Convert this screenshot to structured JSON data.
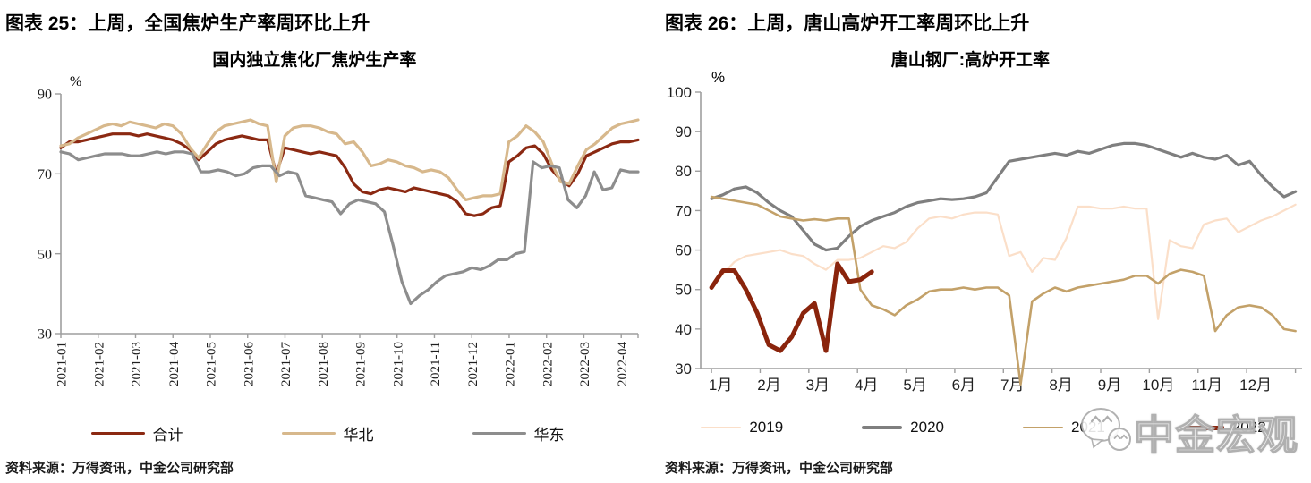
{
  "panels": [
    {
      "header": "图表 25：上周，全国焦炉生产率周环比上升",
      "source": "资料来源：万得资讯，中金公司研究部"
    },
    {
      "header": "图表 26：上周，唐山高炉开工率周环比上升",
      "source": "资料来源：万得资讯，中金公司研究部"
    }
  ],
  "watermark": {
    "text": "中金宏观",
    "icon": "wechat-logo-icon"
  },
  "chart_data": [
    {
      "type": "line",
      "title": "国内独立焦化厂焦炉生产率",
      "ylabel": "%",
      "ylim": [
        30,
        90
      ],
      "yticks": [
        90,
        70,
        50,
        30
      ],
      "grid": false,
      "legend_position": "bottom",
      "x_unit": "weekly",
      "x_tick_labels": [
        "2021-01",
        "2021-02",
        "2021-03",
        "2021-04",
        "2021-05",
        "2021-06",
        "2021-07",
        "2021-08",
        "2021-09",
        "2021-10",
        "2021-11",
        "2021-12",
        "2022-01",
        "2022-02",
        "2022-03",
        "2022-04"
      ],
      "series": [
        {
          "name": "合计",
          "color": "#8B2912",
          "width": 3.2,
          "values": [
            76.5,
            78,
            78,
            78.5,
            79,
            79.5,
            80,
            80,
            80,
            79.5,
            80,
            79.5,
            79,
            78.5,
            77.5,
            76,
            73.5,
            75.5,
            77.5,
            78.5,
            79,
            79.5,
            79,
            78.5,
            78.5,
            70,
            76.5,
            76,
            75.5,
            75,
            75.5,
            75,
            74.5,
            71.5,
            67.5,
            65.5,
            65,
            66,
            66.5,
            66,
            65.5,
            66.5,
            66,
            65.5,
            65,
            64.5,
            63,
            60,
            59.5,
            60,
            61.5,
            62,
            73,
            74.5,
            76.5,
            77,
            75,
            71,
            68.5,
            67,
            70,
            74.5,
            75.5,
            76.5,
            77.5,
            78,
            78,
            78.5
          ]
        },
        {
          "name": "华北",
          "color": "#D7B88C",
          "width": 3.2,
          "values": [
            77,
            77.5,
            79,
            80,
            81,
            82,
            82.5,
            82,
            83,
            82.5,
            82,
            81.5,
            82.5,
            82,
            80,
            76.5,
            74,
            77.5,
            80.5,
            82,
            82.5,
            83,
            83.5,
            82.5,
            82,
            68,
            79.5,
            81.5,
            82,
            82,
            81.5,
            80.5,
            80,
            77.5,
            78,
            75.5,
            72,
            72.5,
            73.5,
            73,
            72,
            71.5,
            70.5,
            71,
            70.5,
            69,
            66,
            63.5,
            64,
            64.5,
            64.5,
            65,
            78,
            79.5,
            82,
            80.5,
            78,
            72.5,
            68,
            67.5,
            72,
            76,
            77.5,
            79.5,
            81.5,
            82.5,
            83,
            83.5
          ]
        },
        {
          "name": "华东",
          "color": "#8D8D8D",
          "width": 3.2,
          "values": [
            75.5,
            75,
            73.5,
            74,
            74.5,
            75,
            75,
            75,
            74.5,
            74.5,
            75,
            75.5,
            75,
            75.5,
            75.5,
            75,
            70.5,
            70.5,
            71,
            70.5,
            69.5,
            70,
            71.5,
            72,
            72,
            69.5,
            70.5,
            70,
            64.5,
            64,
            63.5,
            63,
            60,
            62.5,
            63.5,
            63,
            62.5,
            60.5,
            52,
            43,
            37.5,
            39.5,
            41,
            43,
            44.5,
            45,
            45.5,
            46.5,
            46,
            47,
            48.5,
            48.5,
            50,
            50.5,
            73,
            71.5,
            72,
            71.5,
            63.5,
            61.5,
            64.5,
            70.5,
            66,
            66.5,
            71,
            70.5,
            70.5
          ]
        }
      ]
    },
    {
      "type": "line",
      "title": "唐山钢厂:高炉开工率",
      "ylabel": "%",
      "ylim": [
        30,
        100
      ],
      "yticks": [
        100,
        90,
        80,
        70,
        60,
        50,
        40,
        30
      ],
      "grid": false,
      "legend_position": "bottom",
      "x_unit": "weekly",
      "x_tick_labels": [
        "1月",
        "2月",
        "3月",
        "4月",
        "5月",
        "6月",
        "7月",
        "8月",
        "9月",
        "10月",
        "11月",
        "12月"
      ],
      "series": [
        {
          "name": "2019",
          "color": "#FBDFC9",
          "width": 2.2,
          "values": [
            50.5,
            54,
            57,
            58.5,
            59,
            59.5,
            60,
            59,
            58.5,
            56.5,
            55,
            57.5,
            57.5,
            58,
            59.5,
            61,
            60.5,
            62,
            65.5,
            68,
            68.5,
            68,
            69,
            69.5,
            69.5,
            69,
            58.5,
            59.5,
            54.5,
            58,
            57.5,
            63,
            71,
            71,
            70.5,
            70.5,
            71,
            70.5,
            70.5,
            42.5,
            62.5,
            61,
            60.5,
            66.5,
            67.5,
            68,
            64.5,
            66,
            67.5,
            68.5,
            70,
            71.5
          ]
        },
        {
          "name": "2020",
          "color": "#7F7F7F",
          "width": 3.2,
          "values": [
            73,
            74,
            75.5,
            76,
            74.5,
            72,
            70,
            68.5,
            65,
            61.5,
            60,
            60.5,
            63.5,
            66,
            67.5,
            68.5,
            69.5,
            71,
            72,
            72.5,
            73,
            72.8,
            73,
            73.5,
            74.5,
            78.5,
            82.5,
            83,
            83.5,
            84,
            84.5,
            84,
            85,
            84.5,
            85.5,
            86.5,
            87,
            87,
            86.5,
            85.5,
            84.5,
            83.5,
            84.5,
            83.5,
            83,
            84,
            81.5,
            82.5,
            79,
            76,
            73.5,
            74.8
          ]
        },
        {
          "name": "2021",
          "color": "#C3A169",
          "width": 2.6,
          "values": [
            73.5,
            73,
            72.5,
            72,
            71.5,
            70,
            68.5,
            68,
            67.5,
            67.8,
            67.5,
            68,
            68,
            50,
            46,
            45,
            43.5,
            46,
            47.5,
            49.5,
            50,
            50,
            50.5,
            50,
            50.5,
            50.5,
            48.5,
            26,
            47,
            49,
            50.5,
            49.5,
            50.5,
            51,
            51.5,
            52,
            52.5,
            53.5,
            53.5,
            51.5,
            54,
            55,
            54.5,
            53.5,
            39.5,
            43.5,
            45.5,
            46,
            45.5,
            43.5,
            40,
            39.5
          ]
        },
        {
          "name": "2022",
          "color": "#8A240C",
          "width": 5,
          "values": [
            50.5,
            54.8,
            54.8,
            50,
            44,
            36,
            34.5,
            38,
            44,
            46.5,
            34.5,
            56.5,
            52,
            52.5,
            54.5
          ]
        }
      ]
    }
  ]
}
